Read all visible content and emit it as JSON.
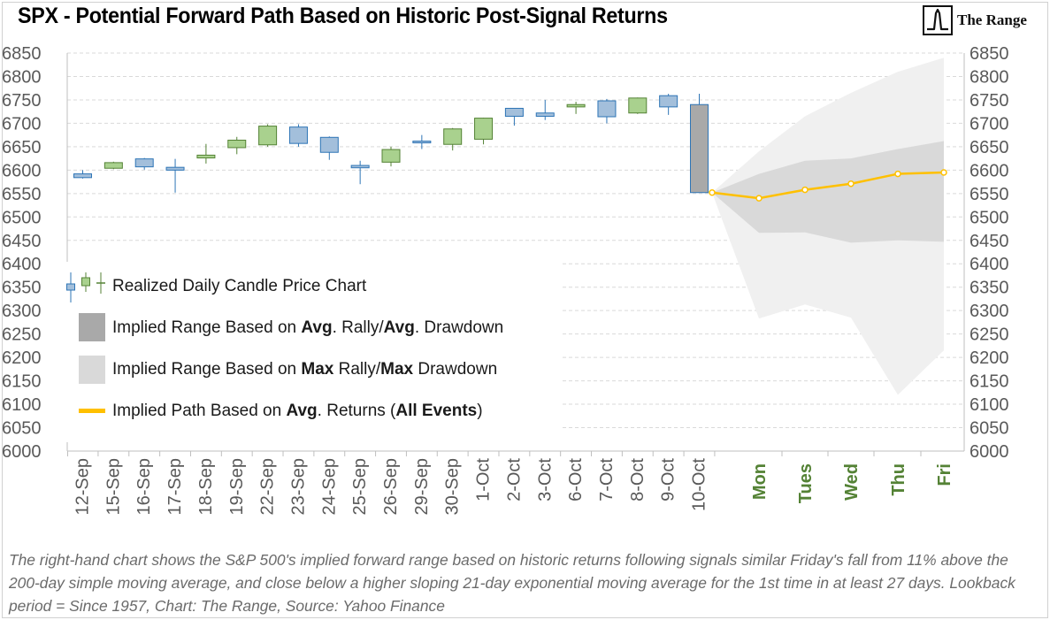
{
  "header": {
    "title": "SPX   - Potential Forward Path Based on Historic Post-Signal Returns",
    "brand": "The Range"
  },
  "legend": {
    "candles": "Realized Daily Candle Price Chart",
    "avg_range": {
      "a": "Implied Range Based on ",
      "b": "Avg",
      "c": ". Rally/",
      "d": "Avg",
      "e": ". Drawdown"
    },
    "max_range": {
      "a": "Implied Range Based on ",
      "b": "Max",
      "c": " Rally/",
      "d": "Max",
      "e": " Drawdown"
    },
    "path": {
      "a": "Implied Path Based on ",
      "b": "Avg",
      "c": ". Returns (",
      "d": "All Events",
      "e": ")"
    }
  },
  "caption": "The right-hand chart shows the S&P 500's implied forward range based on historic returns following signals similar Friday's fall from 11% above the 200-day simple moving average, and close below a higher sloping 21-day exponential moving average for the 1st time in at least 27 days. Lookback period = Since 1957, Chart: The Range, Source: Yahoo Finance",
  "colors": {
    "bull_fill": "#a9d18e",
    "bull_edge": "#548235",
    "bear_fill": "#a3bfdb",
    "bear_edge": "#2e75b6",
    "big_candle_fill": "#a9a9a9",
    "avg_band": "#d9d9d9",
    "max_band": "#f0f0f0",
    "path": "#ffc000",
    "future_label": "#548235",
    "axis_text": "#595959",
    "caption_text": "#6b6b6b"
  },
  "chart_data": {
    "type": "candlestick",
    "ylim": [
      6000,
      6850
    ],
    "y_ticks": [
      6000,
      6050,
      6100,
      6150,
      6200,
      6250,
      6300,
      6350,
      6400,
      6450,
      6500,
      6550,
      6600,
      6650,
      6700,
      6750,
      6800,
      6850
    ],
    "categories": [
      "12-Sep",
      "15-Sep",
      "16-Sep",
      "17-Sep",
      "18-Sep",
      "19-Sep",
      "22-Sep",
      "23-Sep",
      "24-Sep",
      "25-Sep",
      "26-Sep",
      "29-Sep",
      "30-Sep",
      "1-Oct",
      "2-Oct",
      "3-Oct",
      "6-Oct",
      "7-Oct",
      "8-Oct",
      "9-Oct",
      "10-Oct"
    ],
    "ohlc": [
      {
        "date": "12-Sep",
        "open": 6592,
        "high": 6600,
        "low": 6582,
        "close": 6584
      },
      {
        "date": "15-Sep",
        "open": 6604,
        "high": 6618,
        "low": 6602,
        "close": 6616
      },
      {
        "date": "16-Sep",
        "open": 6624,
        "high": 6626,
        "low": 6601,
        "close": 6607
      },
      {
        "date": "17-Sep",
        "open": 6606,
        "high": 6624,
        "low": 6552,
        "close": 6600
      },
      {
        "date": "18-Sep",
        "open": 6626,
        "high": 6656,
        "low": 6614,
        "close": 6632
      },
      {
        "date": "19-Sep",
        "open": 6648,
        "high": 6671,
        "low": 6634,
        "close": 6664
      },
      {
        "date": "22-Sep",
        "open": 6654,
        "high": 6698,
        "low": 6650,
        "close": 6694
      },
      {
        "date": "23-Sep",
        "open": 6692,
        "high": 6698,
        "low": 6650,
        "close": 6657
      },
      {
        "date": "24-Sep",
        "open": 6670,
        "high": 6672,
        "low": 6622,
        "close": 6638
      },
      {
        "date": "25-Sep",
        "open": 6610,
        "high": 6620,
        "low": 6570,
        "close": 6605
      },
      {
        "date": "26-Sep",
        "open": 6617,
        "high": 6650,
        "low": 6608,
        "close": 6644
      },
      {
        "date": "29-Sep",
        "open": 6662,
        "high": 6675,
        "low": 6645,
        "close": 6659
      },
      {
        "date": "30-Sep",
        "open": 6655,
        "high": 6690,
        "low": 6642,
        "close": 6688
      },
      {
        "date": "1-Oct",
        "open": 6666,
        "high": 6712,
        "low": 6655,
        "close": 6711
      },
      {
        "date": "2-Oct",
        "open": 6732,
        "high": 6732,
        "low": 6695,
        "close": 6715
      },
      {
        "date": "3-Oct",
        "open": 6722,
        "high": 6750,
        "low": 6707,
        "close": 6715
      },
      {
        "date": "6-Oct",
        "open": 6735,
        "high": 6746,
        "low": 6720,
        "close": 6740
      },
      {
        "date": "7-Oct",
        "open": 6748,
        "high": 6752,
        "low": 6700,
        "close": 6714
      },
      {
        "date": "8-Oct",
        "open": 6722,
        "high": 6755,
        "low": 6720,
        "close": 6754
      },
      {
        "date": "9-Oct",
        "open": 6759,
        "high": 6763,
        "low": 6718,
        "close": 6735
      },
      {
        "date": "10-Oct",
        "open": 6740,
        "high": 6763,
        "low": 6552,
        "close": 6552
      }
    ],
    "forward": {
      "labels": [
        "Mon",
        "Tues",
        "Wed",
        "Thu",
        "Fri"
      ],
      "path": [
        6552,
        6540,
        6558,
        6571,
        6592,
        6595
      ],
      "avg_upper": [
        6552,
        6592,
        6620,
        6625,
        6645,
        6662
      ],
      "avg_lower": [
        6552,
        6466,
        6467,
        6445,
        6450,
        6447
      ],
      "max_upper": [
        6552,
        6640,
        6715,
        6765,
        6810,
        6840
      ],
      "max_lower": [
        6552,
        6283,
        6313,
        6285,
        6120,
        6215
      ]
    }
  }
}
